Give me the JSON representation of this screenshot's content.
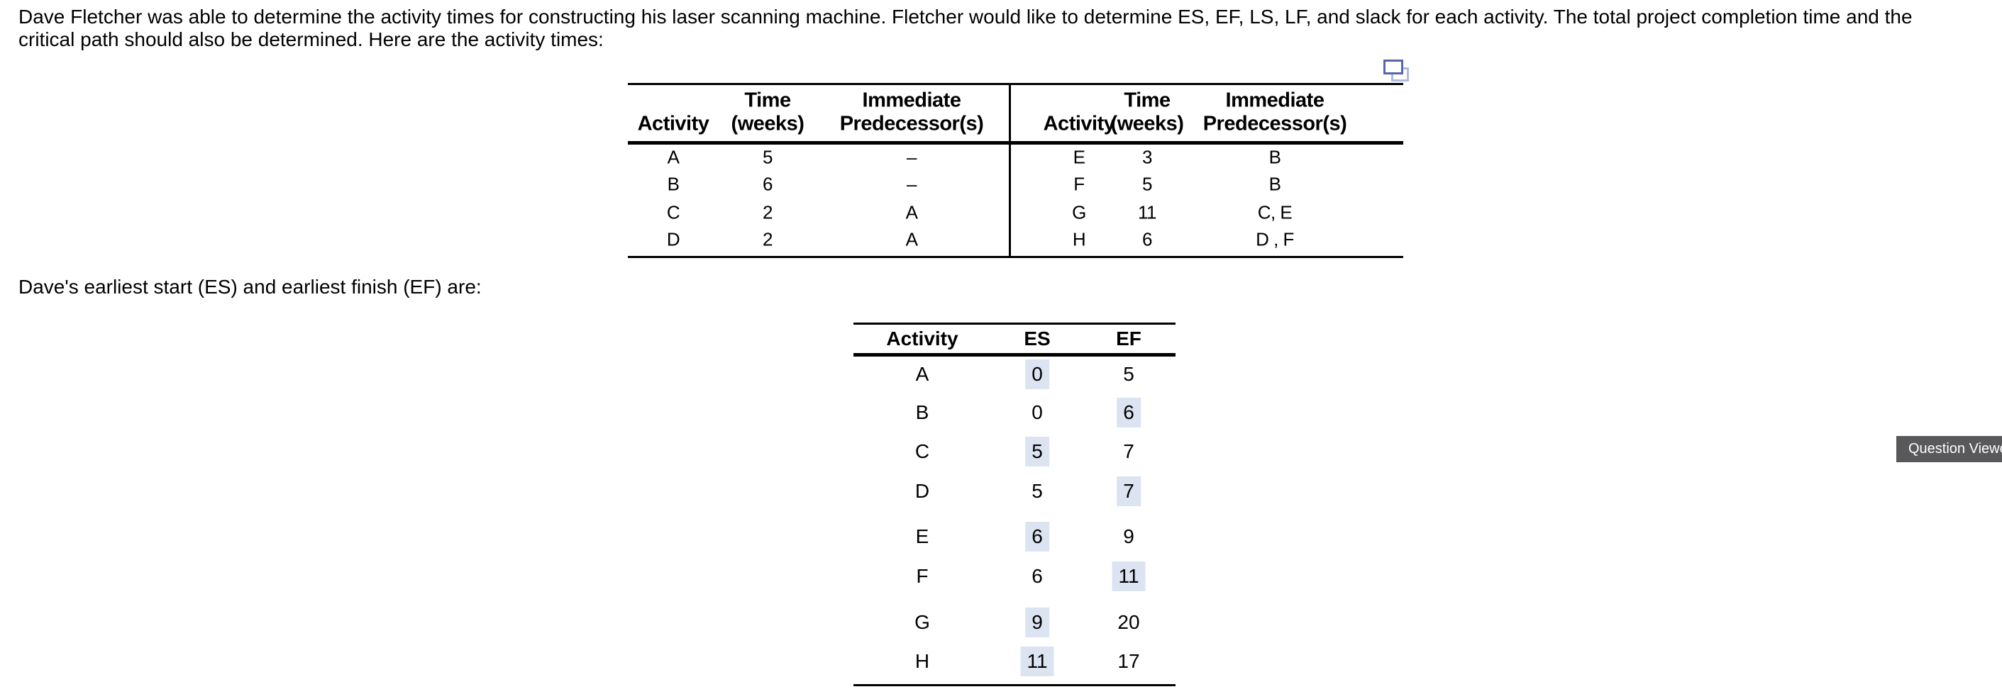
{
  "intro": {
    "line1": "Dave Fletcher was able to determine the activity times for constructing his laser scanning machine. Fletcher would like to determine ES, EF, LS, LF, and slack for each activity. The total project completion time and the",
    "line2": "critical path should also be determined. Here are the activity times:"
  },
  "prompt": "Dave's earliest start (ES) and earliest finish (EF) are:",
  "copy_icon": "copy-icon",
  "activity_table": {
    "header": {
      "col1_line2": "Activity",
      "col2_line1": "Time",
      "col2_line2": "(weeks)",
      "col3_line1": "Immediate",
      "col3_line2": "Predecessor(s)"
    },
    "left_rows": [
      {
        "activity": "A",
        "time": "5",
        "pred": "–"
      },
      {
        "activity": "B",
        "time": "6",
        "pred": "–"
      },
      {
        "activity": "C",
        "time": "2",
        "pred": "A"
      },
      {
        "activity": "D",
        "time": "2",
        "pred": "A"
      }
    ],
    "right_rows": [
      {
        "activity": "E",
        "time": "3",
        "pred": "B"
      },
      {
        "activity": "F",
        "time": "5",
        "pred": "B"
      },
      {
        "activity": "G",
        "time": "11",
        "pred": "C, E"
      },
      {
        "activity": "H",
        "time": "6",
        "pred": "D , F"
      }
    ]
  },
  "es_ef_table": {
    "headers": {
      "activity": "Activity",
      "es": "ES",
      "ef": "EF"
    },
    "rows": [
      {
        "activity": "A",
        "es": "0",
        "es_highlight": true,
        "ef": "5",
        "ef_highlight": false
      },
      {
        "activity": "B",
        "es": "0",
        "es_highlight": false,
        "ef": "6",
        "ef_highlight": true
      },
      {
        "activity": "C",
        "es": "5",
        "es_highlight": true,
        "ef": "7",
        "ef_highlight": false
      },
      {
        "activity": "D",
        "es": "5",
        "es_highlight": false,
        "ef": "7",
        "ef_highlight": true
      },
      {
        "activity": "E",
        "es": "6",
        "es_highlight": true,
        "ef": "9",
        "ef_highlight": false
      },
      {
        "activity": "F",
        "es": "6",
        "es_highlight": false,
        "ef": "11",
        "ef_highlight": true
      },
      {
        "activity": "G",
        "es": "9",
        "es_highlight": true,
        "ef": "20",
        "ef_highlight": false
      },
      {
        "activity": "H",
        "es": "11",
        "es_highlight": true,
        "ef": "17",
        "ef_highlight": false
      }
    ]
  },
  "question_viewer_tab": {
    "label": "Question Viewer"
  },
  "colors": {
    "answer_highlight": "#dce3f1",
    "tab_background": "#59595b",
    "copy_icon_front": "#5565ae",
    "copy_icon_back": "#b0b9de"
  }
}
